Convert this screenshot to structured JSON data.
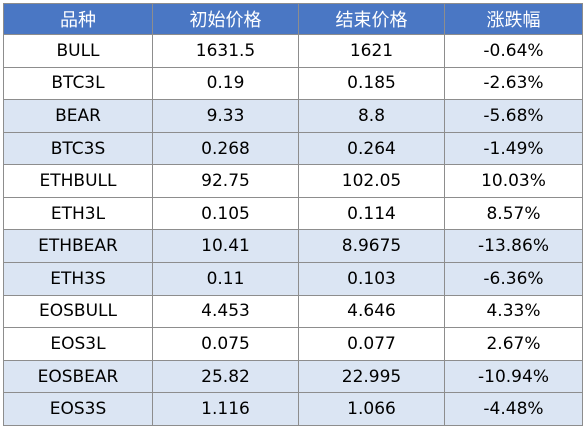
{
  "table": {
    "headers": [
      "品种",
      "初始价格",
      "结束价格",
      "涨跌幅"
    ],
    "rows": [
      [
        "BULL",
        "1631.5",
        "1621",
        "-0.64%"
      ],
      [
        "BTC3L",
        "0.19",
        "0.185",
        "-2.63%"
      ],
      [
        "BEAR",
        "9.33",
        "8.8",
        "-5.68%"
      ],
      [
        "BTC3S",
        "0.268",
        "0.264",
        "-1.49%"
      ],
      [
        "ETHBULL",
        "92.75",
        "102.05",
        "10.03%"
      ],
      [
        "ETH3L",
        "0.105",
        "0.114",
        "8.57%"
      ],
      [
        "ETHBEAR",
        "10.41",
        "8.9675",
        "-13.86%"
      ],
      [
        "ETH3S",
        "0.11",
        "0.103",
        "-6.36%"
      ],
      [
        "EOSBULL",
        "4.453",
        "4.646",
        "4.33%"
      ],
      [
        "EOS3L",
        "0.075",
        "0.077",
        "2.67%"
      ],
      [
        "EOSBEAR",
        "25.82",
        "22.995",
        "-10.94%"
      ],
      [
        "EOS3S",
        "1.116",
        "1.066",
        "-4.48%"
      ]
    ]
  },
  "colors": {
    "header_bg": "#4a77c4",
    "header_text": "#ffffff",
    "shaded_row_bg": "#dbe5f3",
    "plain_row_bg": "#ffffff",
    "border": "#8d8d8d"
  }
}
